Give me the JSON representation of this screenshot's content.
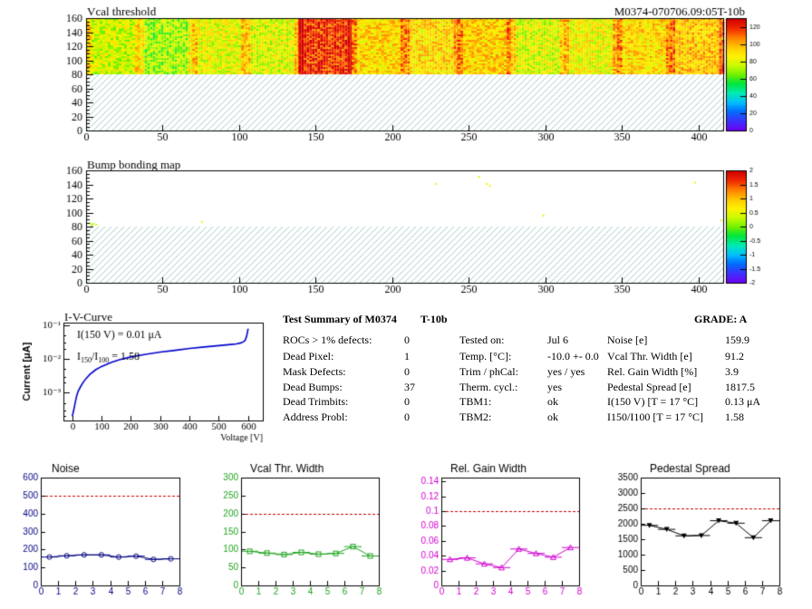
{
  "header": {
    "title": "Vcal threshold",
    "module_id": "M0374-070706.09:05T-10b"
  },
  "colors": {
    "hatch": "#8fbcbc",
    "plot_line_noise": "#000080",
    "plot_line_vcal": "#1fa31f",
    "plot_line_gain": "#d000d0",
    "plot_line_ped": "#000000",
    "ref_line": "#cc0000",
    "iv_curve": "#0000cc"
  },
  "chart_data": [
    {
      "type": "heatmap",
      "title": "Vcal threshold",
      "x_ticks": [
        "0",
        "50",
        "100",
        "150",
        "200",
        "250",
        "300",
        "350",
        "400"
      ],
      "y_ticks": [
        "0",
        "20",
        "40",
        "60",
        "80",
        "100",
        "120",
        "140",
        "160"
      ],
      "xlim": [
        0,
        416
      ],
      "ylim": [
        0,
        160
      ],
      "filled_rows": [
        80,
        160
      ],
      "empty_region": "hatched",
      "roc_columns_mean": [
        78,
        72,
        82,
        80,
        118,
        92,
        92,
        94,
        80,
        84,
        92,
        96
      ],
      "colorbar_ticks": [
        "0",
        "20",
        "40",
        "60",
        "80",
        "100",
        "120"
      ],
      "colorbar_range": [
        0,
        130
      ]
    },
    {
      "type": "heatmap",
      "title": "Bump bonding map",
      "x_ticks": [
        "0",
        "50",
        "100",
        "150",
        "200",
        "250",
        "300",
        "350",
        "400"
      ],
      "y_ticks": [
        "0",
        "20",
        "40",
        "60",
        "80",
        "100",
        "120",
        "140",
        "160"
      ],
      "xlim": [
        0,
        416
      ],
      "ylim": [
        0,
        160
      ],
      "filled_rows": [
        80,
        160
      ],
      "empty_region": "hatched",
      "points": [
        {
          "x": 228,
          "y": 142,
          "v": 0.6
        },
        {
          "x": 256,
          "y": 152,
          "v": 0.4
        },
        {
          "x": 261,
          "y": 142,
          "v": 0.6
        },
        {
          "x": 263,
          "y": 139,
          "v": 0.6
        },
        {
          "x": 298,
          "y": 97,
          "v": 0.5
        },
        {
          "x": 397,
          "y": 144,
          "v": 0.6
        },
        {
          "x": 75,
          "y": 88,
          "v": 0.4
        },
        {
          "x": 2,
          "y": 86,
          "v": 0.2
        },
        {
          "x": 4,
          "y": 85,
          "v": 0.2
        },
        {
          "x": 6,
          "y": 84,
          "v": 0.3
        },
        {
          "x": 3,
          "y": 83,
          "v": 0.2
        },
        {
          "x": 414,
          "y": 90,
          "v": 0.5
        }
      ],
      "colorbar_ticks": [
        "-2",
        "-1.5",
        "-1",
        "-0.5",
        "0",
        "0.5",
        "1",
        "1.5",
        "2"
      ],
      "colorbar_range": [
        -2,
        2
      ]
    },
    {
      "type": "line",
      "title": "I-V-Curve",
      "xlabel": "Voltage [V]",
      "ylabel": "Current [μA]",
      "log_y": true,
      "x_ticks": [
        "0",
        "100",
        "200",
        "300",
        "400",
        "500",
        "600"
      ],
      "y_ticks": [
        "10⁻³",
        "10⁻²",
        "10⁻¹"
      ],
      "xlim": [
        -30,
        650
      ],
      "ylim": [
        0.00015,
        0.12
      ],
      "annotation_1": "I(150 V) = 0.01 μA",
      "annotation_2_main": "I",
      "annotation_2_sub1": "150",
      "annotation_2_mid": "/I",
      "annotation_2_sub2": "100",
      "annotation_2_tail": " = 1.58",
      "x": [
        0,
        5,
        10,
        15,
        20,
        30,
        40,
        50,
        60,
        80,
        100,
        130,
        160,
        200,
        250,
        300,
        350,
        400,
        450,
        500,
        540,
        560,
        575,
        585,
        590,
        595,
        600
      ],
      "y": [
        0.0002,
        0.0003,
        0.0005,
        0.0008,
        0.0011,
        0.0016,
        0.0022,
        0.0028,
        0.0035,
        0.0048,
        0.006,
        0.0078,
        0.0095,
        0.0115,
        0.0138,
        0.016,
        0.018,
        0.0205,
        0.0228,
        0.025,
        0.027,
        0.028,
        0.03,
        0.033,
        0.036,
        0.048,
        0.08
      ]
    },
    {
      "type": "line",
      "title": "Noise",
      "x_ticks": [
        "0",
        "1",
        "2",
        "3",
        "4",
        "5",
        "6",
        "7",
        "8"
      ],
      "y_ticks": [
        "0",
        "100",
        "200",
        "300",
        "400",
        "500",
        "600"
      ],
      "xlim": [
        0,
        8
      ],
      "ylim": [
        0,
        600
      ],
      "ref_value": 500,
      "marker": "circle",
      "x": [
        0.5,
        1.5,
        2.5,
        3.5,
        4.5,
        5.5,
        6.5,
        7.5
      ],
      "y": [
        158,
        165,
        170,
        170,
        158,
        163,
        145,
        148
      ]
    },
    {
      "type": "line",
      "title": "Vcal Thr. Width",
      "x_ticks": [
        "0",
        "1",
        "2",
        "3",
        "4",
        "5",
        "6",
        "7",
        "8"
      ],
      "y_ticks": [
        "0",
        "50",
        "100",
        "150",
        "200",
        "250",
        "300"
      ],
      "xlim": [
        0,
        8
      ],
      "ylim": [
        0,
        300
      ],
      "ref_value": 200,
      "marker": "square",
      "x": [
        0.5,
        1.5,
        2.5,
        3.5,
        4.5,
        5.5,
        6.5,
        7.5
      ],
      "y": [
        95,
        90,
        86,
        92,
        87,
        89,
        108,
        82
      ]
    },
    {
      "type": "line",
      "title": "Rel. Gain Width",
      "x_ticks": [
        "0",
        "1",
        "2",
        "3",
        "4",
        "5",
        "6",
        "7",
        "8"
      ],
      "y_ticks": [
        "0",
        "0.02",
        "0.04",
        "0.06",
        "0.08",
        "0.1",
        "0.12",
        "0.14"
      ],
      "xlim": [
        0,
        8
      ],
      "ylim": [
        0,
        0.145
      ],
      "ref_value": 0.1,
      "marker": "triangle",
      "x": [
        0.5,
        1.5,
        2.5,
        3.5,
        4.5,
        5.5,
        6.5,
        7.5
      ],
      "y": [
        0.035,
        0.037,
        0.029,
        0.024,
        0.049,
        0.043,
        0.038,
        0.051
      ]
    },
    {
      "type": "line",
      "title": "Pedestal Spread",
      "x_ticks": [
        "0",
        "1",
        "2",
        "3",
        "4",
        "5",
        "6",
        "7",
        "8"
      ],
      "y_ticks": [
        "0",
        "500",
        "1000",
        "1500",
        "2000",
        "2500",
        "3000",
        "3500"
      ],
      "xlim": [
        0,
        8
      ],
      "ylim": [
        0,
        3500
      ],
      "ref_value": 2500,
      "marker": "triangle-down",
      "x": [
        0.5,
        1.5,
        2.5,
        3.5,
        4.5,
        5.5,
        6.5,
        7.5
      ],
      "y": [
        1950,
        1820,
        1610,
        1620,
        2100,
        2020,
        1550,
        2100
      ]
    }
  ],
  "summary": {
    "heading": "Test Summary of M0374",
    "code": "T-10b",
    "grade": "GRADE:  A",
    "left": [
      {
        "label": "ROCs > 1% defects:",
        "value": "0"
      },
      {
        "label": "Dead Pixel:",
        "value": "1"
      },
      {
        "label": "Mask Defects:",
        "value": "0"
      },
      {
        "label": "Dead Bumps:",
        "value": "37"
      },
      {
        "label": "Dead Trimbits:",
        "value": "0"
      },
      {
        "label": "Address Probl:",
        "value": "0"
      }
    ],
    "middle": [
      {
        "label": "Tested on:",
        "value": "Jul 6"
      },
      {
        "label": "Temp. [°C]:",
        "value": "-10.0 +- 0.0"
      },
      {
        "label": "Trim / phCal:",
        "value": "yes / yes"
      },
      {
        "label": "Therm. cycl.:",
        "value": "yes"
      },
      {
        "label": "TBM1:",
        "value": "ok"
      },
      {
        "label": "TBM2:",
        "value": "ok"
      }
    ],
    "right": [
      {
        "label": "Noise [e]",
        "value": "159.9"
      },
      {
        "label": "Vcal Thr. Width [e]",
        "value": "91.2"
      },
      {
        "label": "Rel. Gain Width [%]",
        "value": "3.9"
      },
      {
        "label": "Pedestal Spread [e]",
        "value": "1817.5"
      },
      {
        "label": "I(150 V) [T = 17 °C]",
        "value": "0.13 μA"
      },
      {
        "label": "I150/I100  [T = 17 °C]",
        "value": "1.58"
      }
    ]
  }
}
